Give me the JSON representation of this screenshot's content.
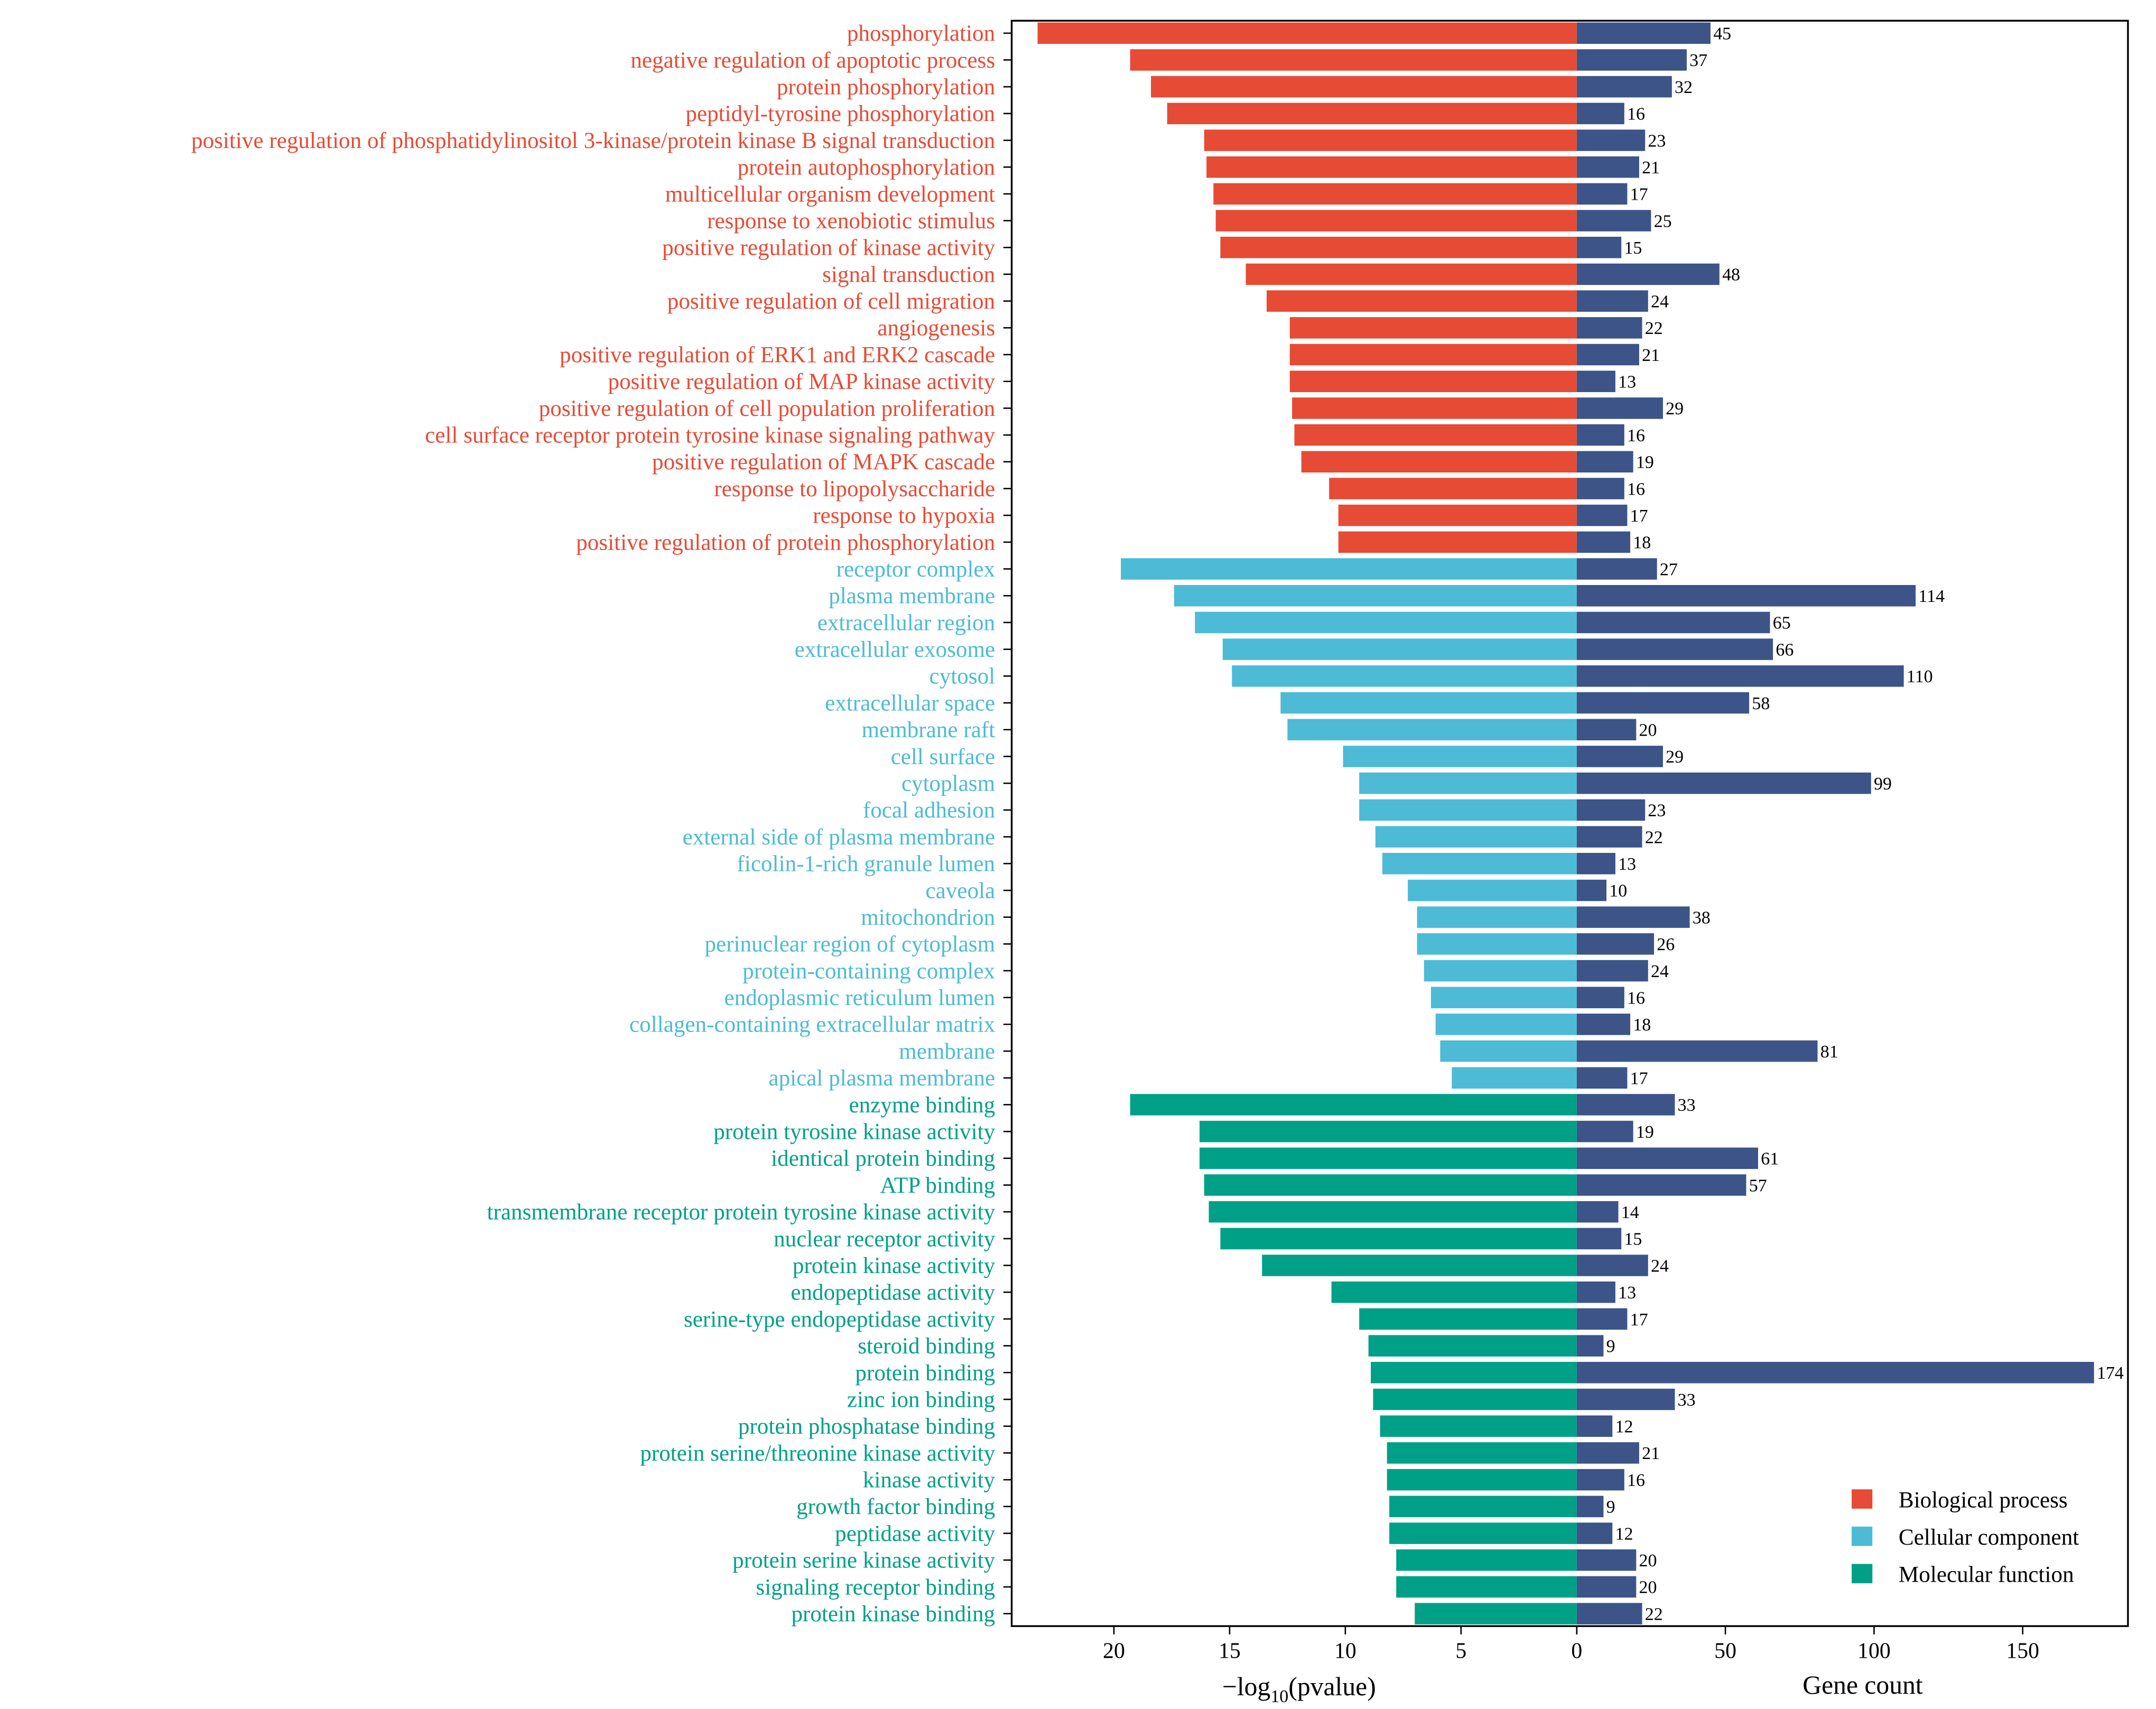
{
  "chart_data": {
    "type": "bar",
    "title": "",
    "left_panel": {
      "xlabel_prefix": "−log",
      "xlabel_sub": "10",
      "xlabel_suffix": "(pvalue)",
      "xlim": [
        0,
        24.5
      ],
      "ticks": [
        "20",
        "15",
        "10",
        "5",
        "0"
      ],
      "tick_values": [
        20,
        15,
        10,
        5,
        0
      ]
    },
    "right_panel": {
      "xlabel": "Gene count",
      "xlim": [
        0,
        180
      ],
      "ticks": [
        "0",
        "50",
        "100",
        "150"
      ],
      "tick_values": [
        0,
        50,
        100,
        150
      ],
      "bar_color": "#3c5488"
    },
    "legend": {
      "placement": "bottom-right",
      "entries": [
        {
          "label": "Biological process",
          "color": "#e64b35"
        },
        {
          "label": "Cellular component",
          "color": "#4dbbd5"
        },
        {
          "label": "Molecular function",
          "color": "#00a087"
        }
      ]
    },
    "rows": [
      {
        "term": "phosphorylation",
        "cat": 0,
        "neglog10p": 23.3,
        "count": 45
      },
      {
        "term": "negative regulation of apoptotic process",
        "cat": 0,
        "neglog10p": 19.3,
        "count": 37
      },
      {
        "term": "protein phosphorylation",
        "cat": 0,
        "neglog10p": 18.4,
        "count": 32
      },
      {
        "term": "peptidyl-tyrosine phosphorylation",
        "cat": 0,
        "neglog10p": 17.7,
        "count": 16
      },
      {
        "term": "positive regulation of phosphatidylinositol 3-kinase/protein kinase B signal transduction",
        "cat": 0,
        "neglog10p": 16.1,
        "count": 23
      },
      {
        "term": "protein autophosphorylation",
        "cat": 0,
        "neglog10p": 16.0,
        "count": 21
      },
      {
        "term": "multicellular organism development",
        "cat": 0,
        "neglog10p": 15.7,
        "count": 17
      },
      {
        "term": "response to xenobiotic stimulus",
        "cat": 0,
        "neglog10p": 15.6,
        "count": 25
      },
      {
        "term": "positive regulation of kinase activity",
        "cat": 0,
        "neglog10p": 15.4,
        "count": 15
      },
      {
        "term": "signal transduction",
        "cat": 0,
        "neglog10p": 14.3,
        "count": 48
      },
      {
        "term": "positive regulation of cell migration",
        "cat": 0,
        "neglog10p": 13.4,
        "count": 24
      },
      {
        "term": "angiogenesis",
        "cat": 0,
        "neglog10p": 12.4,
        "count": 22
      },
      {
        "term": "positive regulation of ERK1 and ERK2 cascade",
        "cat": 0,
        "neglog10p": 12.4,
        "count": 21
      },
      {
        "term": "positive regulation of MAP kinase activity",
        "cat": 0,
        "neglog10p": 12.4,
        "count": 13
      },
      {
        "term": "positive regulation of cell population proliferation",
        "cat": 0,
        "neglog10p": 12.3,
        "count": 29
      },
      {
        "term": "cell surface receptor protein tyrosine kinase signaling pathway",
        "cat": 0,
        "neglog10p": 12.2,
        "count": 16
      },
      {
        "term": "positive regulation of MAPK cascade",
        "cat": 0,
        "neglog10p": 11.9,
        "count": 19
      },
      {
        "term": "response to lipopolysaccharide",
        "cat": 0,
        "neglog10p": 10.7,
        "count": 16
      },
      {
        "term": "response to hypoxia",
        "cat": 0,
        "neglog10p": 10.3,
        "count": 17
      },
      {
        "term": "positive regulation of protein phosphorylation",
        "cat": 0,
        "neglog10p": 10.3,
        "count": 18
      },
      {
        "term": "receptor complex",
        "cat": 1,
        "neglog10p": 19.7,
        "count": 27
      },
      {
        "term": "plasma membrane",
        "cat": 1,
        "neglog10p": 17.4,
        "count": 114
      },
      {
        "term": "extracellular region",
        "cat": 1,
        "neglog10p": 16.5,
        "count": 65
      },
      {
        "term": "extracellular exosome",
        "cat": 1,
        "neglog10p": 15.3,
        "count": 66
      },
      {
        "term": "cytosol",
        "cat": 1,
        "neglog10p": 14.9,
        "count": 110
      },
      {
        "term": "extracellular space",
        "cat": 1,
        "neglog10p": 12.8,
        "count": 58
      },
      {
        "term": "membrane raft",
        "cat": 1,
        "neglog10p": 12.5,
        "count": 20
      },
      {
        "term": "cell surface",
        "cat": 1,
        "neglog10p": 10.1,
        "count": 29
      },
      {
        "term": "cytoplasm",
        "cat": 1,
        "neglog10p": 9.4,
        "count": 99
      },
      {
        "term": "focal adhesion",
        "cat": 1,
        "neglog10p": 9.4,
        "count": 23
      },
      {
        "term": "external side of plasma membrane",
        "cat": 1,
        "neglog10p": 8.7,
        "count": 22
      },
      {
        "term": "ficolin-1-rich granule lumen",
        "cat": 1,
        "neglog10p": 8.4,
        "count": 13
      },
      {
        "term": "caveola",
        "cat": 1,
        "neglog10p": 7.3,
        "count": 10
      },
      {
        "term": "mitochondrion",
        "cat": 1,
        "neglog10p": 6.9,
        "count": 38
      },
      {
        "term": "perinuclear region of cytoplasm",
        "cat": 1,
        "neglog10p": 6.9,
        "count": 26
      },
      {
        "term": "protein-containing complex",
        "cat": 1,
        "neglog10p": 6.6,
        "count": 24
      },
      {
        "term": "endoplasmic reticulum lumen",
        "cat": 1,
        "neglog10p": 6.3,
        "count": 16
      },
      {
        "term": "collagen-containing extracellular matrix",
        "cat": 1,
        "neglog10p": 6.1,
        "count": 18
      },
      {
        "term": "membrane",
        "cat": 1,
        "neglog10p": 5.9,
        "count": 81
      },
      {
        "term": "apical plasma membrane",
        "cat": 1,
        "neglog10p": 5.4,
        "count": 17
      },
      {
        "term": "enzyme binding",
        "cat": 2,
        "neglog10p": 19.3,
        "count": 33
      },
      {
        "term": "protein tyrosine kinase activity",
        "cat": 2,
        "neglog10p": 16.3,
        "count": 19
      },
      {
        "term": "identical protein binding",
        "cat": 2,
        "neglog10p": 16.3,
        "count": 61
      },
      {
        "term": "ATP binding",
        "cat": 2,
        "neglog10p": 16.1,
        "count": 57
      },
      {
        "term": "transmembrane receptor protein tyrosine kinase activity",
        "cat": 2,
        "neglog10p": 15.9,
        "count": 14
      },
      {
        "term": "nuclear receptor activity",
        "cat": 2,
        "neglog10p": 15.4,
        "count": 15
      },
      {
        "term": "protein kinase activity",
        "cat": 2,
        "neglog10p": 13.6,
        "count": 24
      },
      {
        "term": "endopeptidase activity",
        "cat": 2,
        "neglog10p": 10.6,
        "count": 13
      },
      {
        "term": "serine-type endopeptidase activity",
        "cat": 2,
        "neglog10p": 9.4,
        "count": 17
      },
      {
        "term": "steroid binding",
        "cat": 2,
        "neglog10p": 9.0,
        "count": 9
      },
      {
        "term": "protein binding",
        "cat": 2,
        "neglog10p": 8.9,
        "count": 174
      },
      {
        "term": "zinc ion binding",
        "cat": 2,
        "neglog10p": 8.8,
        "count": 33
      },
      {
        "term": "protein phosphatase binding",
        "cat": 2,
        "neglog10p": 8.5,
        "count": 12
      },
      {
        "term": "protein serine/threonine kinase activity",
        "cat": 2,
        "neglog10p": 8.2,
        "count": 21
      },
      {
        "term": "kinase activity",
        "cat": 2,
        "neglog10p": 8.2,
        "count": 16
      },
      {
        "term": "growth factor binding",
        "cat": 2,
        "neglog10p": 8.1,
        "count": 9
      },
      {
        "term": "peptidase activity",
        "cat": 2,
        "neglog10p": 8.1,
        "count": 12
      },
      {
        "term": "protein serine kinase activity",
        "cat": 2,
        "neglog10p": 7.8,
        "count": 20
      },
      {
        "term": "signaling receptor binding",
        "cat": 2,
        "neglog10p": 7.8,
        "count": 20
      },
      {
        "term": "protein kinase binding",
        "cat": 2,
        "neglog10p": 7.0,
        "count": 22
      }
    ]
  }
}
